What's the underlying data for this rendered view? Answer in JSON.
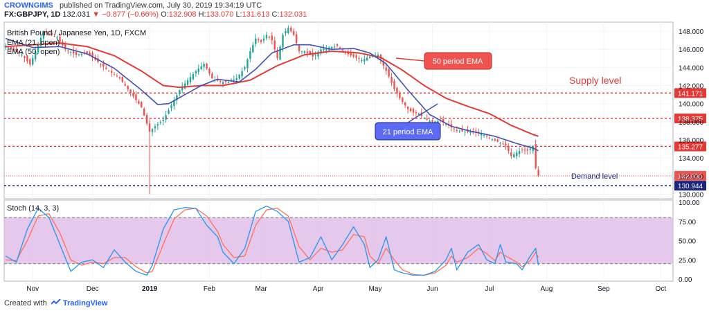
{
  "header": {
    "brand": "CROWNGIMS",
    "published": "published on TradingView.com, July 30, 2019 19:34:19 UTC",
    "symbol": "FX:GBPJPY, 1D",
    "last": "132.031",
    "change": "▼ −0.877 (−0.66%)",
    "o_label": "O:",
    "o_val": "132.908",
    "h_label": "H:",
    "h_val": "133.070",
    "l_label": "L:",
    "l_val": "131.613",
    "c_label": "C:",
    "c_val": "132.031"
  },
  "legend": {
    "title": "British Pound / Japanese Yen, 1D, FXCM",
    "ema21": "EMA (21, open)",
    "ema50": "EMA (50, open)"
  },
  "annotations": {
    "ema50_label": "50 period EMA",
    "ema21_label": "21 period EMA",
    "supply": "Supply level",
    "demand": "Demand level"
  },
  "stoch_label": "Stoch (14, 3, 3)",
  "footer": {
    "created": "Created with",
    "brand": "TradingView"
  },
  "colors": {
    "up": "#26a69a",
    "down": "#ef5350",
    "ema21": "#3f51b5",
    "ema50": "#e53935",
    "supply_line": "#e53935",
    "demand_line": "#1a237e",
    "stoch_k": "#2196f3",
    "stoch_d": "#ff6f5b",
    "stoch_band": "#e1bee7",
    "accent": "#2962ff"
  },
  "chart_data": [
    {
      "type": "candlestick",
      "ylim": [
        129.5,
        149
      ],
      "yticks": [
        "148.000",
        "146.000",
        "144.000",
        "142.000",
        "140.000",
        "138.000",
        "136.000",
        "134.000",
        "132.000",
        "130.000"
      ],
      "ytick_values": [
        148,
        146,
        144,
        142,
        140,
        138,
        136,
        134,
        132,
        130
      ],
      "xticks": [
        "Nov",
        "Dec",
        "2019",
        "Feb",
        "Mar",
        "Apr",
        "May",
        "Jun",
        "Jul",
        "Aug",
        "Sep",
        "Oct"
      ],
      "xtick_index": [
        10,
        32,
        53,
        75,
        94,
        115,
        136,
        157,
        178,
        199,
        220,
        241
      ],
      "n_bars": 246,
      "levels": [
        {
          "value": 141.171,
          "label": "141.171",
          "style": "supply"
        },
        {
          "value": 138.375,
          "label": "138.375",
          "style": "supply"
        },
        {
          "value": 135.277,
          "label": "135.277",
          "style": "supply"
        },
        {
          "value": 132.031,
          "label": "132.031",
          "style": "last"
        },
        {
          "value": 130.944,
          "label": "130.944",
          "style": "demand"
        }
      ],
      "close_anchors": [
        [
          0,
          146.4
        ],
        [
          6,
          145.4
        ],
        [
          9,
          144.3
        ],
        [
          11,
          145.8
        ],
        [
          14,
          148.0
        ],
        [
          19,
          147.3
        ],
        [
          22,
          146.0
        ],
        [
          26,
          145.4
        ],
        [
          30,
          145.6
        ],
        [
          34,
          144.6
        ],
        [
          38,
          143.6
        ],
        [
          42,
          142.8
        ],
        [
          46,
          141.2
        ],
        [
          50,
          139.6
        ],
        [
          53,
          136.9
        ],
        [
          55,
          137.5
        ],
        [
          58,
          138.2
        ],
        [
          61,
          139.8
        ],
        [
          64,
          141.5
        ],
        [
          67,
          142.6
        ],
        [
          70,
          143.6
        ],
        [
          73,
          144.4
        ],
        [
          76,
          142.8
        ],
        [
          79,
          142.4
        ],
        [
          82,
          142.4
        ],
        [
          85,
          142.8
        ],
        [
          88,
          144.0
        ],
        [
          90,
          145.8
        ],
        [
          92,
          147.2
        ],
        [
          94,
          146.8
        ],
        [
          96,
          147.6
        ],
        [
          98,
          147.0
        ],
        [
          100,
          145.0
        ],
        [
          102,
          147.6
        ],
        [
          104,
          148.4
        ],
        [
          106,
          147.6
        ],
        [
          108,
          145.8
        ],
        [
          110,
          145.8
        ],
        [
          113,
          145.2
        ],
        [
          116,
          146.0
        ],
        [
          119,
          146.2
        ],
        [
          122,
          146.4
        ],
        [
          125,
          145.6
        ],
        [
          128,
          145.2
        ],
        [
          131,
          144.8
        ],
        [
          134,
          145.2
        ],
        [
          137,
          145.4
        ],
        [
          139,
          144.2
        ],
        [
          141,
          143.0
        ],
        [
          143,
          141.6
        ],
        [
          145,
          140.6
        ],
        [
          148,
          139.4
        ],
        [
          150,
          139.0
        ],
        [
          152,
          138.9
        ],
        [
          155,
          138.2
        ],
        [
          157,
          138.0
        ],
        [
          160,
          138.1
        ],
        [
          163,
          137.6
        ],
        [
          166,
          137.0
        ],
        [
          169,
          136.9
        ],
        [
          172,
          136.8
        ],
        [
          175,
          136.7
        ],
        [
          178,
          136.2
        ],
        [
          181,
          135.8
        ],
        [
          184,
          135.4
        ],
        [
          186,
          134.2
        ],
        [
          188,
          134.6
        ],
        [
          190,
          134.9
        ],
        [
          192,
          134.8
        ],
        [
          194,
          135.3
        ],
        [
          195,
          132.9
        ],
        [
          196,
          132.031
        ]
      ],
      "ema21_anchors": [
        [
          0,
          147.2
        ],
        [
          10,
          146.2
        ],
        [
          20,
          146.3
        ],
        [
          30,
          145.5
        ],
        [
          40,
          143.9
        ],
        [
          50,
          141.5
        ],
        [
          56,
          139.9
        ],
        [
          60,
          140.0
        ],
        [
          66,
          141.0
        ],
        [
          72,
          142.0
        ],
        [
          78,
          142.7
        ],
        [
          86,
          142.4
        ],
        [
          92,
          143.8
        ],
        [
          98,
          145.6
        ],
        [
          106,
          146.5
        ],
        [
          112,
          146.5
        ],
        [
          120,
          146.0
        ],
        [
          128,
          146.1
        ],
        [
          134,
          145.6
        ],
        [
          140,
          144.4
        ],
        [
          148,
          141.5
        ],
        [
          156,
          138.8
        ],
        [
          164,
          137.5
        ],
        [
          172,
          136.9
        ],
        [
          180,
          136.4
        ],
        [
          188,
          135.6
        ],
        [
          194,
          135.1
        ],
        [
          196,
          134.8
        ]
      ],
      "ema50_anchors": [
        [
          0,
          146.3
        ],
        [
          10,
          146.5
        ],
        [
          20,
          146.7
        ],
        [
          30,
          146.3
        ],
        [
          40,
          145.3
        ],
        [
          50,
          143.6
        ],
        [
          58,
          142.0
        ],
        [
          64,
          141.8
        ],
        [
          72,
          142.0
        ],
        [
          80,
          142.0
        ],
        [
          90,
          142.6
        ],
        [
          100,
          144.2
        ],
        [
          110,
          145.4
        ],
        [
          120,
          145.8
        ],
        [
          130,
          145.6
        ],
        [
          138,
          145.1
        ],
        [
          146,
          143.7
        ],
        [
          154,
          142.0
        ],
        [
          162,
          140.6
        ],
        [
          170,
          139.7
        ],
        [
          178,
          138.9
        ],
        [
          186,
          137.6
        ],
        [
          194,
          136.6
        ],
        [
          196,
          136.4
        ]
      ]
    },
    {
      "type": "line",
      "title": "Stoch (14, 3, 3)",
      "ylim": [
        0,
        100
      ],
      "yticks": [
        "100.00",
        "75.00",
        "50.00",
        "25.00",
        "0.00"
      ],
      "ytick_values": [
        100,
        75,
        50,
        25,
        0
      ],
      "band": [
        20,
        80
      ],
      "k_anchors": [
        [
          0,
          30
        ],
        [
          4,
          22
        ],
        [
          8,
          65
        ],
        [
          12,
          92
        ],
        [
          16,
          80
        ],
        [
          20,
          45
        ],
        [
          24,
          10
        ],
        [
          28,
          22
        ],
        [
          32,
          25
        ],
        [
          36,
          15
        ],
        [
          40,
          38
        ],
        [
          44,
          22
        ],
        [
          48,
          10
        ],
        [
          52,
          5
        ],
        [
          54,
          18
        ],
        [
          58,
          65
        ],
        [
          62,
          90
        ],
        [
          66,
          93
        ],
        [
          70,
          92
        ],
        [
          74,
          70
        ],
        [
          78,
          55
        ],
        [
          80,
          35
        ],
        [
          84,
          20
        ],
        [
          88,
          40
        ],
        [
          92,
          88
        ],
        [
          96,
          95
        ],
        [
          100,
          88
        ],
        [
          104,
          75
        ],
        [
          108,
          22
        ],
        [
          112,
          28
        ],
        [
          116,
          55
        ],
        [
          120,
          25
        ],
        [
          124,
          45
        ],
        [
          128,
          68
        ],
        [
          132,
          45
        ],
        [
          134,
          15
        ],
        [
          137,
          25
        ],
        [
          140,
          55
        ],
        [
          143,
          12
        ],
        [
          146,
          8
        ],
        [
          150,
          5
        ],
        [
          154,
          5
        ],
        [
          158,
          10
        ],
        [
          162,
          25
        ],
        [
          164,
          40
        ],
        [
          166,
          12
        ],
        [
          170,
          35
        ],
        [
          174,
          45
        ],
        [
          177,
          25
        ],
        [
          180,
          20
        ],
        [
          182,
          45
        ],
        [
          184,
          22
        ],
        [
          188,
          20
        ],
        [
          190,
          12
        ],
        [
          193,
          30
        ],
        [
          195,
          40
        ],
        [
          196,
          18
        ]
      ],
      "d_anchors": [
        [
          0,
          25
        ],
        [
          4,
          24
        ],
        [
          8,
          50
        ],
        [
          12,
          82
        ],
        [
          16,
          85
        ],
        [
          20,
          60
        ],
        [
          24,
          25
        ],
        [
          28,
          18
        ],
        [
          32,
          22
        ],
        [
          36,
          20
        ],
        [
          40,
          28
        ],
        [
          44,
          28
        ],
        [
          48,
          16
        ],
        [
          52,
          8
        ],
        [
          54,
          10
        ],
        [
          58,
          45
        ],
        [
          62,
          78
        ],
        [
          66,
          90
        ],
        [
          70,
          92
        ],
        [
          74,
          82
        ],
        [
          78,
          62
        ],
        [
          80,
          45
        ],
        [
          84,
          28
        ],
        [
          88,
          30
        ],
        [
          92,
          70
        ],
        [
          96,
          90
        ],
        [
          100,
          92
        ],
        [
          104,
          82
        ],
        [
          108,
          42
        ],
        [
          112,
          25
        ],
        [
          116,
          40
        ],
        [
          120,
          35
        ],
        [
          124,
          38
        ],
        [
          128,
          58
        ],
        [
          132,
          55
        ],
        [
          134,
          30
        ],
        [
          137,
          20
        ],
        [
          140,
          40
        ],
        [
          143,
          25
        ],
        [
          146,
          12
        ],
        [
          150,
          6
        ],
        [
          154,
          5
        ],
        [
          158,
          8
        ],
        [
          162,
          18
        ],
        [
          164,
          30
        ],
        [
          166,
          22
        ],
        [
          170,
          28
        ],
        [
          174,
          40
        ],
        [
          177,
          33
        ],
        [
          180,
          24
        ],
        [
          182,
          35
        ],
        [
          184,
          30
        ],
        [
          188,
          22
        ],
        [
          190,
          16
        ],
        [
          193,
          24
        ],
        [
          195,
          35
        ],
        [
          196,
          28
        ]
      ]
    }
  ]
}
